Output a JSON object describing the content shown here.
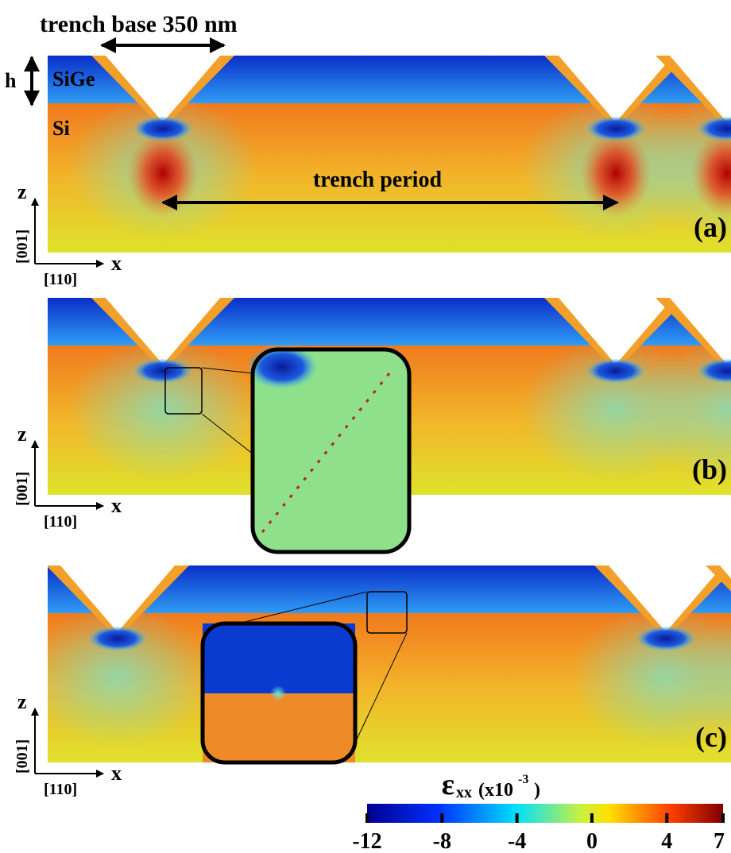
{
  "header": {
    "trench_base": "trench base 350 nm",
    "thickness": "h",
    "layer_top": "SiGe",
    "layer_bottom": "Si",
    "period": "trench period"
  },
  "panels": [
    {
      "label": "(a)",
      "axis_z": "z",
      "axis_x": "x",
      "dir_z": "[001]",
      "dir_x": "[110]"
    },
    {
      "label": "(b)",
      "axis_z": "z",
      "axis_x": "x",
      "dir_z": "[001]",
      "dir_x": "[110]"
    },
    {
      "label": "(c)",
      "axis_z": "z",
      "axis_x": "x",
      "dir_z": "[001]",
      "dir_x": "[110]"
    }
  ],
  "colorbar": {
    "symbol": "ε",
    "subscript": "xx",
    "unit_prefix": "(x10",
    "exponent": "-3",
    "unit_suffix": ")",
    "lim": [
      -12,
      7
    ],
    "ticks": [
      -12,
      -8,
      -4,
      0,
      4,
      7
    ]
  }
}
